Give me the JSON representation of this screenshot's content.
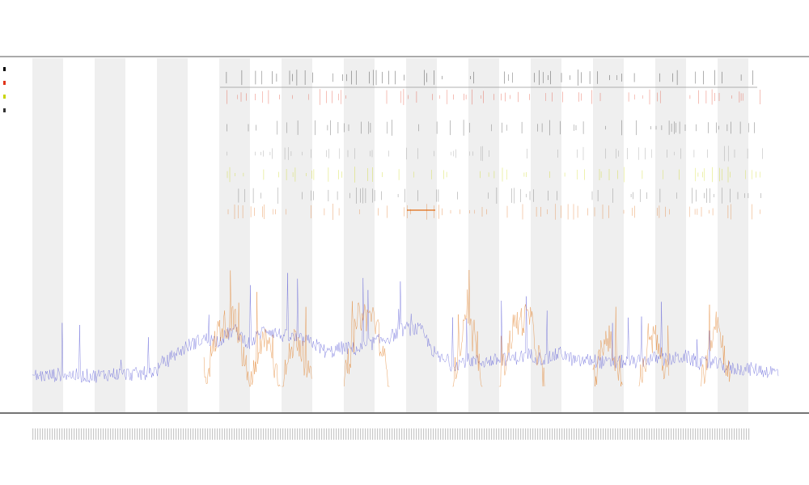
{
  "chart_data": {
    "type": "line",
    "title": "",
    "subtitle_lines": [
      "",
      ""
    ],
    "xlabel": "",
    "ylabel": "",
    "legend_placement": "top-left",
    "grid": false,
    "x_range": [
      0,
      1000
    ],
    "y_range": [
      0,
      1
    ],
    "shaded_bands": 12,
    "lanes": [
      {
        "name": "",
        "color": "#000000"
      },
      {
        "name": "",
        "color": "#e0341a"
      },
      {
        "name": "",
        "color": "#333333"
      },
      {
        "name": "",
        "color": "#888888"
      },
      {
        "name": "",
        "color": "#c8d400"
      },
      {
        "name": "",
        "color": "#555555"
      },
      {
        "name": "",
        "color": "#e06a10"
      }
    ],
    "series": [
      {
        "name": "",
        "color": "#5b5bd6",
        "values": [
          0.06,
          0.06,
          0.07,
          0.06,
          0.06,
          0.07,
          0.07,
          0.07,
          0.09,
          0.17,
          0.23,
          0.27,
          0.26,
          0.32,
          0.24,
          0.33,
          0.29,
          0.27,
          0.25,
          0.19,
          0.22,
          0.21,
          0.25,
          0.28,
          0.33,
          0.32,
          0.17,
          0.12,
          0.15,
          0.14,
          0.15,
          0.16,
          0.18,
          0.15,
          0.19,
          0.14,
          0.15,
          0.13,
          0.14,
          0.14,
          0.16,
          0.15,
          0.17,
          0.13,
          0.13,
          0.1,
          0.1,
          0.09,
          0.08
        ]
      },
      {
        "name": "",
        "color": "#e07a20",
        "values": [
          0,
          0,
          0,
          0,
          0,
          0,
          0,
          0,
          0,
          0,
          0,
          0,
          0.33,
          0.38,
          0,
          0.3,
          0,
          0.3,
          0,
          0,
          0,
          0.4,
          0.4,
          0,
          0,
          0,
          0,
          0,
          0.4,
          0,
          0,
          0.35,
          0.4,
          0,
          0,
          0,
          0,
          0.3,
          0,
          0,
          0.3,
          0,
          0,
          0,
          0.4,
          0,
          0,
          0,
          0
        ]
      }
    ],
    "legend": [
      "",
      "",
      "",
      ""
    ]
  }
}
